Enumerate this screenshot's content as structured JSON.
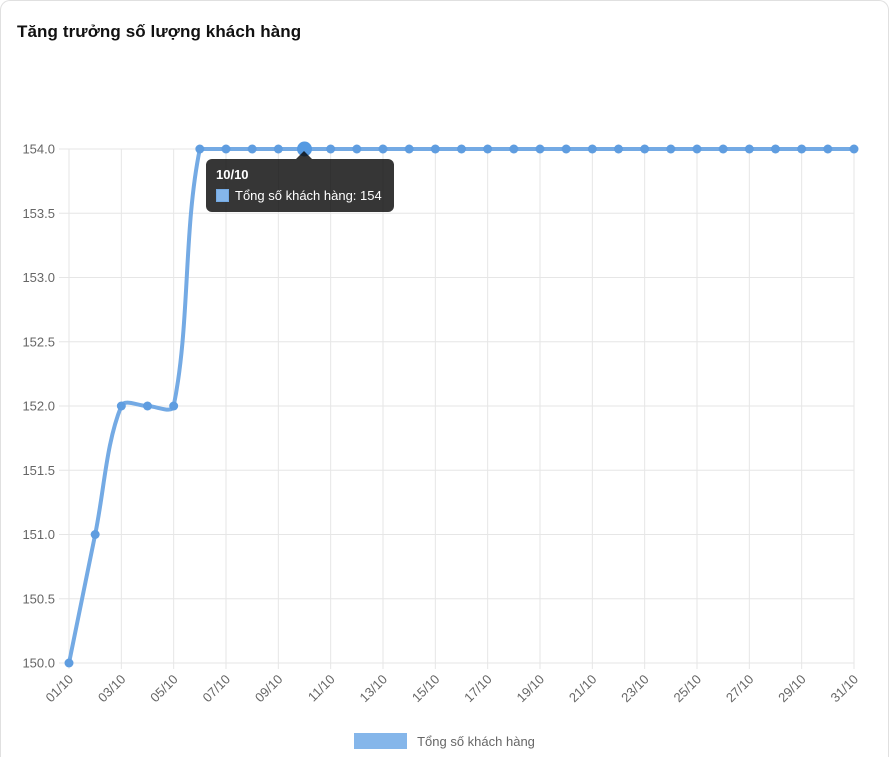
{
  "header": {
    "title": "Tăng trưởng số lượng khách hàng"
  },
  "chart_data": {
    "type": "line",
    "title": "Tăng trưởng số lượng khách hàng",
    "x": [
      "01/10",
      "02/10",
      "03/10",
      "04/10",
      "05/10",
      "06/10",
      "07/10",
      "08/10",
      "09/10",
      "10/10",
      "11/10",
      "12/10",
      "13/10",
      "14/10",
      "15/10",
      "16/10",
      "17/10",
      "18/10",
      "19/10",
      "20/10",
      "21/10",
      "22/10",
      "23/10",
      "24/10",
      "25/10",
      "26/10",
      "27/10",
      "28/10",
      "29/10",
      "30/10",
      "31/10"
    ],
    "series": [
      {
        "name": "Tổng số khách hàng",
        "values": [
          150,
          151,
          152,
          152,
          152,
          154,
          154,
          154,
          154,
          154,
          154,
          154,
          154,
          154,
          154,
          154,
          154,
          154,
          154,
          154,
          154,
          154,
          154,
          154,
          154,
          154,
          154,
          154,
          154,
          154,
          154
        ]
      }
    ],
    "ylim": [
      150,
      154
    ],
    "ytick_step": 0.5,
    "ytick_labels": [
      "150.0",
      "150.5",
      "151.0",
      "151.5",
      "152.0",
      "152.5",
      "153.0",
      "153.5",
      "154.0"
    ],
    "xtick_labels": [
      "01/10",
      "03/10",
      "05/10",
      "07/10",
      "09/10",
      "11/10",
      "13/10",
      "15/10",
      "17/10",
      "19/10",
      "21/10",
      "23/10",
      "25/10",
      "27/10",
      "29/10",
      "31/10"
    ],
    "grid": true,
    "legend_position": "bottom",
    "line_color": "#74aae4",
    "point_color": "#5f9de0",
    "fill_color": "#85b6ea",
    "grid_color": "#e6e6e6",
    "tick_color": "#666666",
    "highlight": {
      "index": 9,
      "x_label": "10/10",
      "value": 154
    }
  },
  "tooltip": {
    "title": "10/10",
    "body": "Tổng số khách hàng: 154"
  },
  "legend": {
    "label": "Tổng số khách hàng"
  }
}
